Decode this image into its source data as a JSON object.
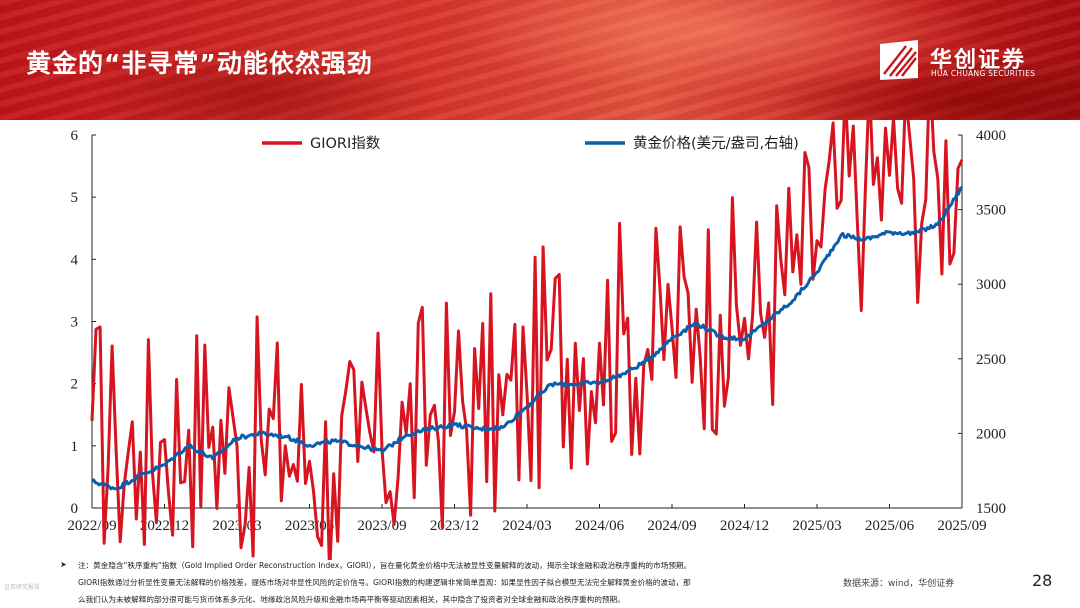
{
  "header": {
    "title": "黄金的“非寻常”动能依然强劲",
    "brand_cn": "华创证券",
    "brand_en": "HUA CHUANG SECURITIES"
  },
  "colors": {
    "banner": "#c8171c",
    "series_giori": "#d7141f",
    "series_gold": "#0b5faa"
  },
  "chart_data": {
    "type": "line",
    "x_tick_labels": [
      "2022/09",
      "2022/12",
      "2023/03",
      "2023/06",
      "2023/09",
      "2023/12",
      "2024/03",
      "2024/06",
      "2024/09",
      "2024/12",
      "2025/03",
      "2025/06",
      "2025/09"
    ],
    "x_range": [
      "2022/09",
      "2025/09"
    ],
    "y_left": {
      "ticks": [
        "0",
        "1",
        "2",
        "3",
        "4",
        "5",
        "6"
      ],
      "range": [
        0,
        6
      ]
    },
    "y_right": {
      "ticks": [
        "1500",
        "2000",
        "2500",
        "3000",
        "3500",
        "4000"
      ],
      "range": [
        1500,
        4000
      ]
    },
    "grid": false,
    "legend_position": "top",
    "series": [
      {
        "name": "GIORI指数",
        "axis": "left",
        "color": "#d7141f",
        "x": [
          "2022/09",
          "2022/10",
          "2022/11",
          "2022/12",
          "2023/01",
          "2023/02",
          "2023/03",
          "2023/04",
          "2023/05",
          "2023/06",
          "2023/07",
          "2023/08",
          "2023/09",
          "2023/10",
          "2023/11",
          "2023/12",
          "2024/01",
          "2024/02",
          "2024/03",
          "2024/04",
          "2024/05",
          "2024/06",
          "2024/07",
          "2024/08",
          "2024/09",
          "2024/10",
          "2024/11",
          "2024/12",
          "2025/01",
          "2025/02",
          "2025/03",
          "2025/04",
          "2025/05",
          "2025/06",
          "2025/07",
          "2025/08",
          "2025/09"
        ],
        "values": [
          1.4,
          0.9,
          0.9,
          1.1,
          1.25,
          1.3,
          1.0,
          1.1,
          1.0,
          0.75,
          0.55,
          0.75,
          0.95,
          1.2,
          1.5,
          1.55,
          1.6,
          1.5,
          1.85,
          2.55,
          2.65,
          2.65,
          2.8,
          2.55,
          2.9,
          3.2,
          3.1,
          3.05,
          3.3,
          3.8,
          4.3,
          4.95,
          5.1,
          5.35,
          5.3,
          5.3,
          5.6
        ]
      },
      {
        "name": "黄金价格(美元/盎司,右轴)",
        "axis": "right",
        "color": "#0b5faa",
        "x": [
          "2022/09",
          "2022/10",
          "2022/11",
          "2022/12",
          "2023/01",
          "2023/02",
          "2023/03",
          "2023/04",
          "2023/05",
          "2023/06",
          "2023/07",
          "2023/08",
          "2023/09",
          "2023/10",
          "2023/11",
          "2023/12",
          "2024/01",
          "2024/02",
          "2024/03",
          "2024/04",
          "2024/05",
          "2024/06",
          "2024/07",
          "2024/08",
          "2024/09",
          "2024/10",
          "2024/11",
          "2024/12",
          "2025/01",
          "2025/02",
          "2025/03",
          "2025/04",
          "2025/05",
          "2025/06",
          "2025/07",
          "2025/08",
          "2025/09"
        ],
        "values": [
          1680,
          1630,
          1720,
          1790,
          1920,
          1830,
          1970,
          2000,
          1980,
          1920,
          1950,
          1920,
          1880,
          1990,
          2030,
          2060,
          2030,
          2040,
          2180,
          2330,
          2330,
          2340,
          2400,
          2490,
          2640,
          2740,
          2650,
          2630,
          2760,
          2890,
          3080,
          3330,
          3300,
          3350,
          3340,
          3400,
          3650
        ]
      }
    ]
  },
  "notes": {
    "bullet": "➤",
    "line1": "注：黄金隐含“秩序重构”指数（Gold Implied Order Reconstruction Index，GIORI），旨在量化黄金价格中无法被显性变量解释的波动，揭示全球金融和政治秩序重构的市场预期。",
    "line2": "GIORI指数通过分析显性变量无法解释的价格残差，提炼市场对非显性风险的定价信号。GIORI指数的构建逻辑非常简单直观：如果显性因子拟合模型无法完全解释黄金价格的波动，那",
    "line3": "么我们认为未被解释的部分很可能与货币体系多元化、地缘政治风险升级和金融市场再平衡等驱动因素相关，其中隐含了投资者对全球金融和政治秩序重构的预期。"
  },
  "disclaimer": "证券研究报告",
  "source": "数据来源：wind，华创证券",
  "page_number": "28"
}
